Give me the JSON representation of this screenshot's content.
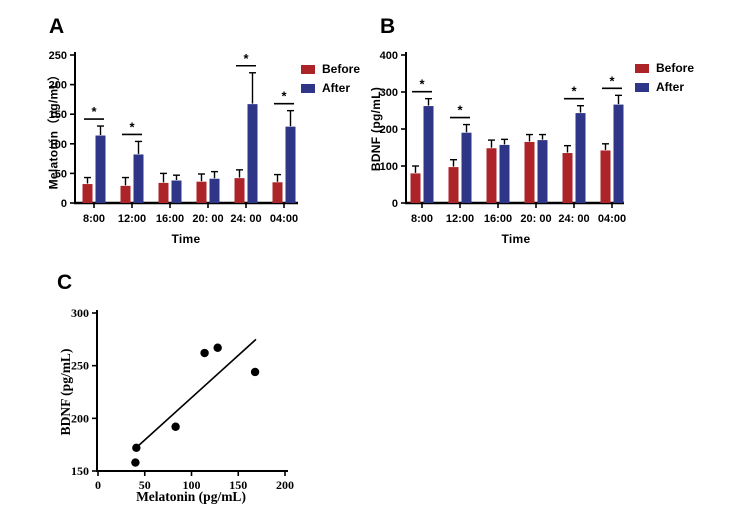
{
  "panels": {
    "a": {
      "label": "A"
    },
    "b": {
      "label": "B"
    },
    "c": {
      "label": "C"
    }
  },
  "legend": {
    "before": "Before",
    "after": "After"
  },
  "colors": {
    "before": "#AC2428",
    "after": "#2F3688",
    "axis": "#000000",
    "points": "#000000",
    "background": "#ffffff"
  },
  "chart_data": [
    {
      "panel": "A",
      "type": "bar",
      "title": "",
      "categories": [
        "8:00",
        "12:00",
        "16:00",
        "20: 00",
        "24: 00",
        "04:00"
      ],
      "series": [
        {
          "name": "Before",
          "color_key": "before",
          "values": [
            32,
            29,
            34,
            36,
            42,
            35
          ],
          "errors": [
            11,
            14,
            16,
            13,
            14,
            13
          ]
        },
        {
          "name": "After",
          "color_key": "after",
          "values": [
            114,
            82,
            38,
            41,
            167,
            129
          ],
          "errors": [
            16,
            22,
            9,
            12,
            53,
            27
          ]
        }
      ],
      "xlabel": "Time",
      "ylabel": "Melatonin（pg/mL）",
      "ylim": [
        0,
        250
      ],
      "yticks": [
        0,
        50,
        100,
        150,
        200,
        250
      ],
      "grid": false,
      "legend_entries": [
        "Before",
        "After"
      ],
      "legend_position": "top-right",
      "significance": {
        "symbol": "*",
        "group_indices": [
          0,
          1,
          4,
          5
        ]
      }
    },
    {
      "panel": "B",
      "type": "bar",
      "title": "",
      "categories": [
        "8:00",
        "12:00",
        "16:00",
        "20: 00",
        "24: 00",
        "04:00"
      ],
      "series": [
        {
          "name": "Before",
          "color_key": "before",
          "values": [
            80,
            97,
            148,
            165,
            135,
            142
          ],
          "errors": [
            20,
            20,
            22,
            20,
            20,
            18
          ]
        },
        {
          "name": "After",
          "color_key": "after",
          "values": [
            262,
            190,
            157,
            170,
            243,
            266
          ],
          "errors": [
            20,
            22,
            15,
            15,
            20,
            25
          ]
        }
      ],
      "xlabel": "Time",
      "ylabel": "BDNF (pg/mL)",
      "ylim": [
        0,
        400
      ],
      "yticks": [
        0,
        100,
        200,
        300,
        400
      ],
      "grid": false,
      "legend_entries": [
        "Before",
        "After"
      ],
      "legend_position": "top-right",
      "significance": {
        "symbol": "*",
        "group_indices": [
          0,
          1,
          4,
          5
        ]
      }
    },
    {
      "panel": "C",
      "type": "scatter",
      "title": "",
      "points": [
        {
          "x": 40,
          "y": 158
        },
        {
          "x": 41,
          "y": 172
        },
        {
          "x": 83,
          "y": 192
        },
        {
          "x": 114,
          "y": 262
        },
        {
          "x": 128,
          "y": 267
        },
        {
          "x": 168,
          "y": 244
        }
      ],
      "trend_line": {
        "x1": 42,
        "y1": 173,
        "x2": 169,
        "y2": 275
      },
      "xlabel": "Melatonin (pg/mL)",
      "ylabel": "BDNF (pg/mL)",
      "xlim": [
        0,
        200
      ],
      "ylim": [
        150,
        300
      ],
      "xticks": [
        0,
        50,
        100,
        150,
        200
      ],
      "yticks": [
        150,
        200,
        250,
        300
      ],
      "grid": false
    }
  ]
}
